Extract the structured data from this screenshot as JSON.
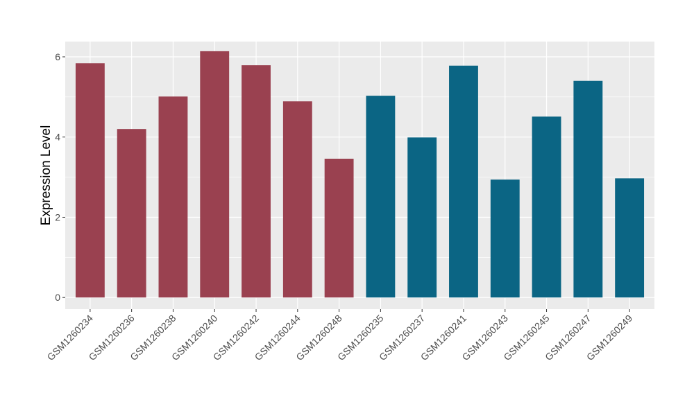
{
  "chart_data": {
    "type": "bar",
    "title": "",
    "xlabel": "",
    "ylabel": "Expression Level",
    "ylim": [
      -0.29,
      6.38
    ],
    "yticks": [
      0,
      2,
      4,
      6
    ],
    "grid": true,
    "categories": [
      "GSM1260234",
      "GSM1260236",
      "GSM1260238",
      "GSM1260240",
      "GSM1260242",
      "GSM1260244",
      "GSM1260248",
      "GSM1260235",
      "GSM1260237",
      "GSM1260241",
      "GSM1260243",
      "GSM1260245",
      "GSM1260247",
      "GSM1260249"
    ],
    "values": [
      5.84,
      4.2,
      5.01,
      6.14,
      5.79,
      4.89,
      3.46,
      5.03,
      3.99,
      5.78,
      2.94,
      4.51,
      5.4,
      2.97
    ],
    "groups": [
      0,
      0,
      0,
      0,
      0,
      0,
      0,
      1,
      1,
      1,
      1,
      1,
      1,
      1
    ],
    "group_colors": [
      "#9a4150",
      "#0b6584"
    ]
  }
}
